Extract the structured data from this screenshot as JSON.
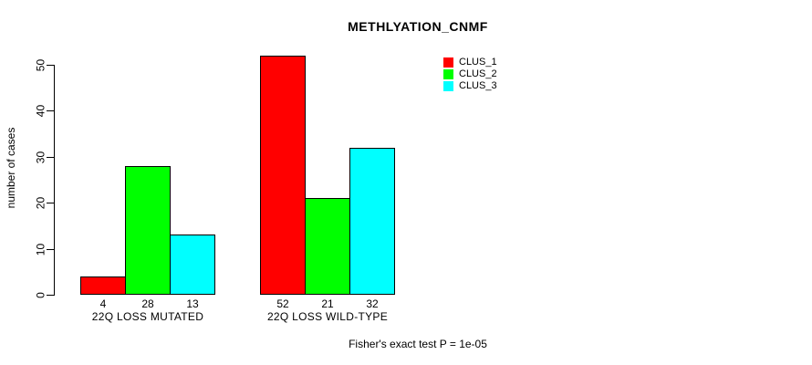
{
  "title": "METHLYATION_CNMF",
  "ylabel": "number of cases",
  "caption": "Fisher's exact test P = 1e-05",
  "chart_data": {
    "type": "bar",
    "title": "METHLYATION_CNMF",
    "xlabel": "",
    "ylabel": "number of cases",
    "categories": [
      "22Q LOSS MUTATED",
      "22Q LOSS WILD-TYPE"
    ],
    "series": [
      {
        "name": "CLUS_1",
        "color": "#FF0000",
        "values": [
          4,
          52
        ]
      },
      {
        "name": "CLUS_2",
        "color": "#00FF00",
        "values": [
          28,
          21
        ]
      },
      {
        "name": "CLUS_3",
        "color": "#00FFFF",
        "values": [
          13,
          32
        ]
      }
    ],
    "bar_value_labels": [
      [
        "4",
        "28",
        "13"
      ],
      [
        "52",
        "21",
        "32"
      ]
    ],
    "ylim": [
      0,
      50
    ],
    "yticks": [
      0,
      10,
      20,
      30,
      40,
      50
    ],
    "grid": false,
    "legend_position": "top-right-inside",
    "bar_border_color": "#000000",
    "annotation": "Fisher's exact test P = 1e-05"
  }
}
